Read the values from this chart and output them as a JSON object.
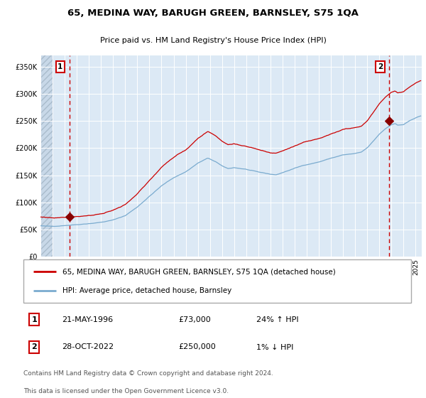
{
  "title1": "65, MEDINA WAY, BARUGH GREEN, BARNSLEY, S75 1QA",
  "title2": "Price paid vs. HM Land Registry's House Price Index (HPI)",
  "legend1": "65, MEDINA WAY, BARUGH GREEN, BARNSLEY, S75 1QA (detached house)",
  "legend2": "HPI: Average price, detached house, Barnsley",
  "transaction1_date": "21-MAY-1996",
  "transaction1_price": 73000,
  "transaction1_hpi": "24% ↑ HPI",
  "transaction2_date": "28-OCT-2022",
  "transaction2_price": 250000,
  "transaction2_hpi": "1% ↓ HPI",
  "footer_line1": "Contains HM Land Registry data © Crown copyright and database right 2024.",
  "footer_line2": "This data is licensed under the Open Government Licence v3.0.",
  "ylim": [
    0,
    370000
  ],
  "yticks": [
    0,
    50000,
    100000,
    150000,
    200000,
    250000,
    300000,
    350000
  ],
  "red_color": "#cc0000",
  "blue_color": "#7aabcf",
  "bg_color": "#dce9f5",
  "hatch_color": "#c0cfe0",
  "grid_color": "#ffffff",
  "dashed_line_color": "#cc0000",
  "transaction1_x": 1996.38,
  "transaction2_x": 2022.83,
  "xlim_left": 1994.0,
  "xlim_right": 2025.5
}
